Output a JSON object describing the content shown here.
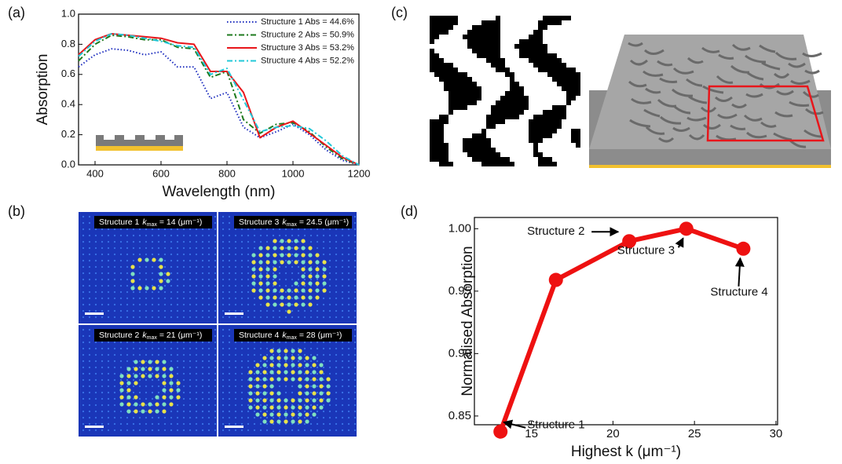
{
  "chart_data": [
    {
      "type": "line",
      "panel_label": "(a)",
      "xlabel": "Wavelength (nm)",
      "ylabel": "Absorption",
      "x": [
        350,
        400,
        450,
        500,
        550,
        600,
        650,
        700,
        750,
        800,
        850,
        900,
        950,
        1000,
        1050,
        1100,
        1150,
        1200
      ],
      "series": [
        {
          "name": "Structure 1 Abs = 44.6%",
          "color": "#1f2fbf",
          "line_style": "dotted",
          "values": [
            0.65,
            0.73,
            0.77,
            0.76,
            0.73,
            0.75,
            0.65,
            0.65,
            0.44,
            0.48,
            0.25,
            0.18,
            0.22,
            0.27,
            0.2,
            0.1,
            0.03,
            0.0
          ]
        },
        {
          "name": "Structure 2 Abs = 50.9%",
          "color": "#1e7a1e",
          "line_style": "dashdot",
          "values": [
            0.69,
            0.8,
            0.86,
            0.85,
            0.83,
            0.83,
            0.78,
            0.77,
            0.58,
            0.62,
            0.3,
            0.21,
            0.27,
            0.28,
            0.22,
            0.12,
            0.04,
            0.0
          ]
        },
        {
          "name": "Structure 3 Abs = 53.2%",
          "color": "#e8161b",
          "line_style": "solid",
          "values": [
            0.73,
            0.83,
            0.87,
            0.86,
            0.85,
            0.84,
            0.81,
            0.8,
            0.62,
            0.62,
            0.48,
            0.18,
            0.25,
            0.29,
            0.21,
            0.13,
            0.05,
            0.0
          ]
        },
        {
          "name": "Structure 4 Abs = 52.2%",
          "color": "#22c8d8",
          "line_style": "dashdot",
          "values": [
            0.72,
            0.82,
            0.87,
            0.86,
            0.84,
            0.82,
            0.79,
            0.78,
            0.6,
            0.64,
            0.43,
            0.22,
            0.25,
            0.26,
            0.24,
            0.16,
            0.06,
            0.0
          ]
        }
      ],
      "xlim": [
        350,
        1200
      ],
      "xticks": [
        400,
        600,
        800,
        1000,
        1200
      ],
      "ylim": [
        0,
        1
      ],
      "yticks": [
        {
          "value": 0,
          "label": "0.0"
        },
        0.2,
        0.4,
        0.6,
        0.8,
        {
          "value": 1,
          "label": "1.0"
        }
      ],
      "legend": "upper right",
      "grid": false
    },
    {
      "type": "line",
      "panel_label": "(d)",
      "xlabel": "Highest k (μm⁻¹)",
      "ylabel": "Normalised Absorption",
      "x": [
        13.1,
        16.5,
        21,
        24.5,
        28
      ],
      "series": [
        {
          "color": "#ee1111",
          "line_style": "solid",
          "markers": true,
          "values": [
            0.8375,
            0.959,
            0.99,
            1.0,
            0.984
          ]
        }
      ],
      "annotations": [
        "Structure 1",
        "Structure 2",
        "Structure 3",
        "Structure 4"
      ],
      "xlim": [
        11.5,
        30.1
      ],
      "xticks": [
        15,
        20,
        25,
        30
      ],
      "ylim": [
        0.843,
        1.009
      ],
      "yticks": [
        0.85,
        {
          "value": 0.9,
          "label": "0.90"
        },
        0.95,
        {
          "value": 1,
          "label": "1.00"
        }
      ],
      "grid": false
    }
  ],
  "image_panels": {
    "b": {
      "label": "(b)",
      "captions": [
        {
          "name": "Structure 1",
          "symbol": "k",
          "subscript": "max",
          "value": "= 14 (μm⁻¹)"
        },
        {
          "name": "Structure 3",
          "symbol": "k",
          "subscript": "max",
          "value": "= 24.5 (μm⁻¹)"
        },
        {
          "name": "Structure 2",
          "symbol": "k",
          "subscript": "max",
          "value": "= 21 (μm⁻¹)"
        },
        {
          "name": "Structure 4",
          "symbol": "k",
          "subscript": "max",
          "value": "= 28 (μm⁻¹)"
        }
      ]
    },
    "c": {
      "label": "(c)"
    }
  }
}
